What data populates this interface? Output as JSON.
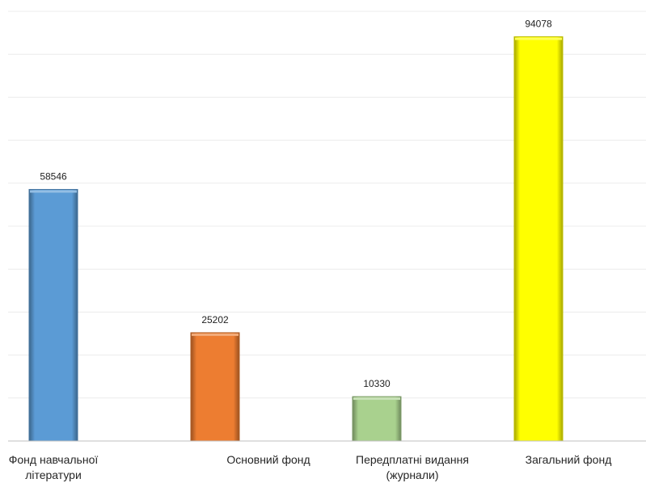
{
  "chart_data": {
    "type": "bar",
    "categories": [
      [
        "Фонд навчальної",
        "літератури"
      ],
      [
        "Основний фонд"
      ],
      [
        "Передплатні видання",
        "(журнали)"
      ],
      [
        "Загальний фонд"
      ]
    ],
    "values": [
      58546,
      25202,
      10330,
      94078
    ],
    "data_labels": [
      "58546",
      "25202",
      "10330",
      "94078"
    ],
    "colors": [
      "#5B9BD5",
      "#ED7D31",
      "#A9D18E",
      "#FFFF00"
    ],
    "ylim": [
      0,
      100000
    ],
    "grid": true,
    "legend": "none",
    "title": "",
    "xlabel": "",
    "ylabel": ""
  }
}
